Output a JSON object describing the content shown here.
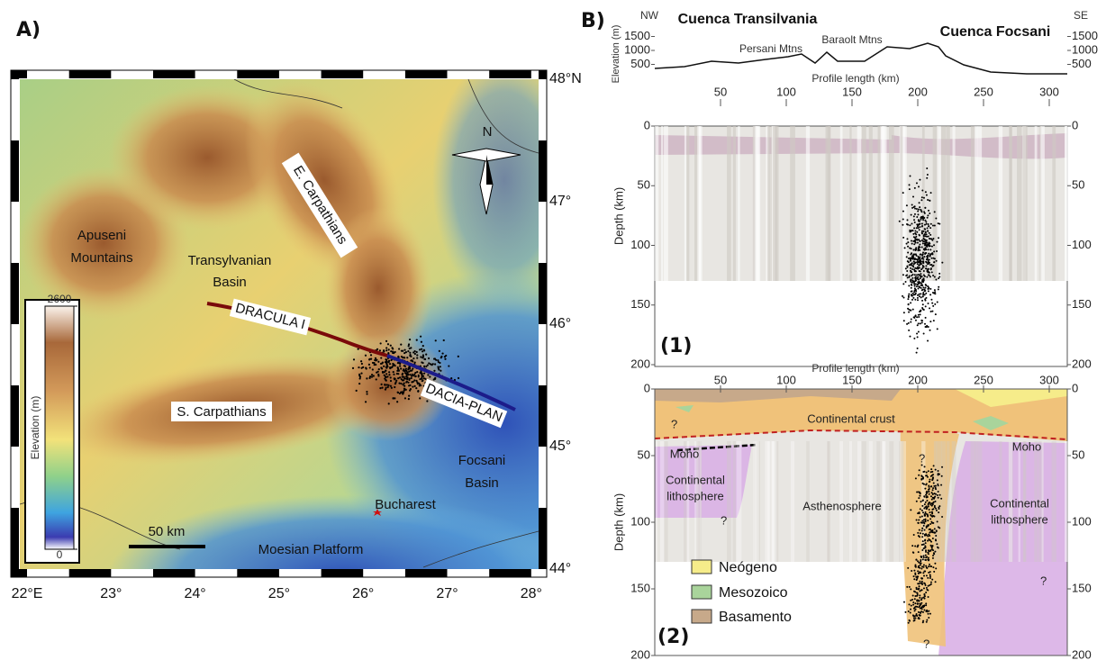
{
  "panel_a": {
    "label": "A)",
    "lat_labels": [
      "48°N",
      "47°",
      "46°",
      "45°",
      "44°"
    ],
    "lon_labels": [
      "22°E",
      "23°",
      "24°",
      "25°",
      "26°",
      "27°",
      "28°"
    ],
    "north": "N",
    "regions": {
      "apuseni": [
        "Apuseni",
        "Mountains"
      ],
      "transylvanian_basin": [
        "Transylvanian",
        "Basin"
      ],
      "east_carpathians": "E. Carpathians",
      "south_carpathians": "S. Carpathians",
      "focsani_basin": [
        "Focsani",
        "Basin"
      ],
      "bucharest": "Bucharest",
      "moesian_platform": "Moesian Platform"
    },
    "profiles": [
      "DRACULA I",
      "DACIA-PLAN"
    ],
    "scale_bar": "50 km",
    "elevation_legend": {
      "title": "Elevation (m)",
      "ticks": [
        0,
        2600
      ]
    }
  },
  "panel_b": {
    "label": "B)",
    "profile": {
      "nw": "NW",
      "se": "SE",
      "title_left": "Cuenca Transilvania",
      "title_right": "Cuenca Focsani",
      "peaks": [
        "Persani Mtns",
        "Baraolt Mtns"
      ],
      "y_label": "Elevation (m)",
      "yticks": [
        500,
        1000,
        1500
      ],
      "x_label": "Profile length (km)",
      "xticks": [
        50,
        100,
        150,
        200,
        250,
        300
      ]
    },
    "section_1": {
      "number": "(1)",
      "y_label": "Depth (km)",
      "yticks": [
        0,
        50,
        100,
        150,
        200
      ]
    },
    "section_2": {
      "number": "(2)",
      "y_label": "Depth (km)",
      "yticks": [
        0,
        50,
        100,
        150,
        200
      ],
      "x_label": "Profile length (km)",
      "xticks": [
        50,
        100,
        150,
        200,
        250,
        300
      ],
      "units": {
        "crust": "Continental crust",
        "moho_left": "Moho",
        "moho_right": "Moho",
        "lithosphere_left": [
          "Continental",
          "lithosphere"
        ],
        "asthenosphere": "Asthenosphere",
        "lithosphere_right": [
          "Continental",
          "lithosphere"
        ]
      },
      "question_marks": [
        "?",
        "?",
        "?",
        "?",
        "?"
      ],
      "legend": [
        "Neógeno",
        "Mesozoico",
        "Basamento"
      ]
    }
  }
}
